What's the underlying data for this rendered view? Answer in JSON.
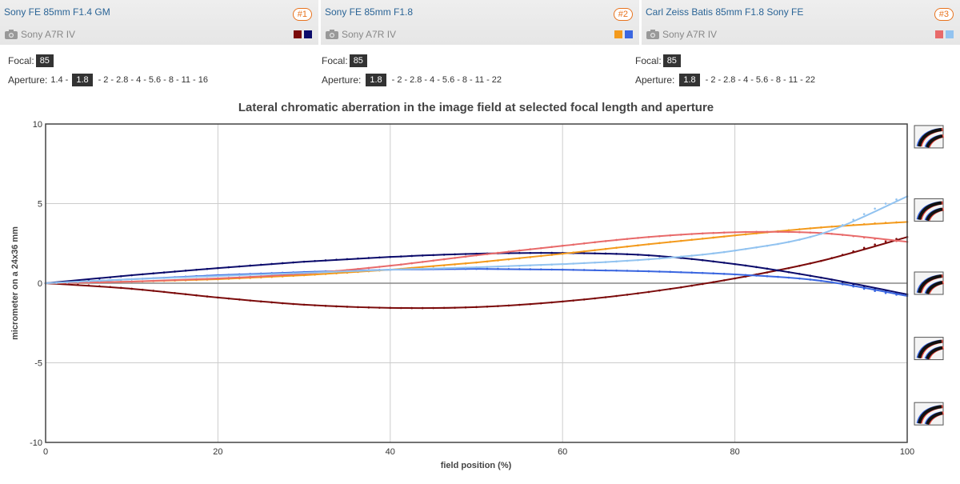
{
  "lenses": [
    {
      "name": "Sony FE 85mm F1.4 GM",
      "badge": "#1",
      "camera": "Sony A7R IV",
      "colors": [
        "#7b0a0a",
        "#0b0b6b"
      ],
      "focal_label": "Focal:",
      "focal_value": "85",
      "aperture_label": "Aperture:",
      "apertures": [
        "1.4",
        "1.8",
        "2",
        "2.8",
        "4",
        "5.6",
        "8",
        "11",
        "16"
      ],
      "selected_aperture": "1.8"
    },
    {
      "name": "Sony FE 85mm F1.8",
      "badge": "#2",
      "camera": "Sony A7R IV",
      "colors": [
        "#f39a1c",
        "#3a66e0"
      ],
      "focal_label": "Focal:",
      "focal_value": "85",
      "aperture_label": "Aperture:",
      "apertures": [
        "1.8",
        "2",
        "2.8",
        "4",
        "5.6",
        "8",
        "11",
        "22"
      ],
      "selected_aperture": "1.8"
    },
    {
      "name": "Carl Zeiss Batis 85mm F1.8 Sony FE",
      "badge": "#3",
      "camera": "Sony A7R IV",
      "colors": [
        "#e86a6a",
        "#92c3f0"
      ],
      "focal_label": "Focal:",
      "focal_value": "85",
      "aperture_label": "Aperture:",
      "apertures": [
        "1.8",
        "2",
        "2.8",
        "4",
        "5.6",
        "8",
        "11",
        "22"
      ],
      "selected_aperture": "1.8"
    }
  ],
  "chart_data": {
    "type": "line",
    "title": "Lateral chromatic aberration in the image field at selected focal length and aperture",
    "xlabel": "field position (%)",
    "ylabel": "micrometer on a 24x36 mm",
    "xlim": [
      0,
      100
    ],
    "ylim": [
      -10,
      10
    ],
    "xticks": [
      0,
      20,
      40,
      60,
      80,
      100
    ],
    "yticks": [
      10,
      5,
      0,
      -5,
      -10
    ],
    "grid": true,
    "x": [
      0,
      10,
      20,
      30,
      40,
      50,
      60,
      70,
      80,
      90,
      100
    ],
    "series": [
      {
        "color": "#7b0a0a",
        "values": [
          0,
          -0.35,
          -0.9,
          -1.35,
          -1.55,
          -1.5,
          -1.15,
          -0.55,
          0.3,
          1.4,
          2.9
        ]
      },
      {
        "color": "#0b0b6b",
        "values": [
          0,
          0.5,
          0.95,
          1.35,
          1.65,
          1.85,
          1.9,
          1.75,
          1.2,
          0.35,
          -0.7
        ]
      },
      {
        "color": "#f39a1c",
        "values": [
          0,
          0.1,
          0.25,
          0.5,
          0.85,
          1.3,
          1.85,
          2.45,
          3.0,
          3.5,
          3.85
        ]
      },
      {
        "color": "#3a66e0",
        "values": [
          0,
          0.25,
          0.5,
          0.7,
          0.85,
          0.9,
          0.85,
          0.75,
          0.55,
          0.15,
          -0.8
        ]
      },
      {
        "color": "#e86a6a",
        "values": [
          0,
          0.1,
          0.3,
          0.6,
          1.1,
          1.75,
          2.35,
          2.9,
          3.2,
          3.15,
          2.6
        ]
      },
      {
        "color": "#92c3f0",
        "values": [
          0,
          0.25,
          0.45,
          0.65,
          0.85,
          1.0,
          1.2,
          1.5,
          2.05,
          3.1,
          5.45
        ]
      }
    ],
    "icon_name": "chromatic-aberration-sample-icon"
  }
}
